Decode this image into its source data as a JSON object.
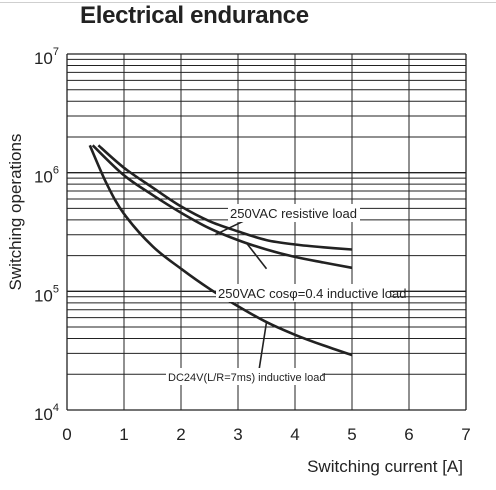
{
  "chart_data": {
    "type": "line",
    "title": "Electrical endurance",
    "xlabel": "Switching current [A]",
    "ylabel": "Switching operations",
    "xlim": [
      0,
      7
    ],
    "ylim": [
      10000,
      10000000
    ],
    "yscale": "log",
    "x_ticks": [
      "0",
      "1",
      "2",
      "3",
      "4",
      "5",
      "6",
      "7"
    ],
    "y_ticks": [
      {
        "base": "10",
        "exp": "4"
      },
      {
        "base": "10",
        "exp": "5"
      },
      {
        "base": "10",
        "exp": "6"
      },
      {
        "base": "10",
        "exp": "7"
      }
    ],
    "grid": true,
    "series": [
      {
        "name": "250VAC resistive load",
        "x": [
          0.55,
          1.0,
          1.5,
          2.0,
          2.5,
          3.0,
          3.5,
          4.0,
          4.5,
          5.0
        ],
        "y": [
          1700000,
          1100000,
          750000,
          520000,
          390000,
          320000,
          270000,
          248000,
          235000,
          225000
        ]
      },
      {
        "name": "250VAC cosφ=0.4 inductive load",
        "x": [
          0.45,
          1.0,
          1.5,
          2.0,
          2.5,
          3.0,
          3.5,
          4.0,
          4.5,
          5.0
        ],
        "y": [
          1700000,
          950000,
          650000,
          460000,
          340000,
          270000,
          225000,
          195000,
          175000,
          158000
        ]
      },
      {
        "name": "DC24V(L/R=7ms) inductive load",
        "x": [
          0.4,
          0.7,
          1.0,
          1.5,
          2.0,
          2.5,
          3.0,
          3.5,
          4.0,
          4.5,
          5.0
        ],
        "y": [
          1700000,
          800000,
          450000,
          240000,
          155000,
          105000,
          75000,
          55000,
          43000,
          35000,
          29000
        ]
      }
    ],
    "annotations": [
      {
        "text": "250VAC resistive load"
      },
      {
        "text": "250VAC cosφ=0.4 inductive load"
      },
      {
        "text": "DC24V(L/R=7ms) inductive load"
      }
    ]
  }
}
